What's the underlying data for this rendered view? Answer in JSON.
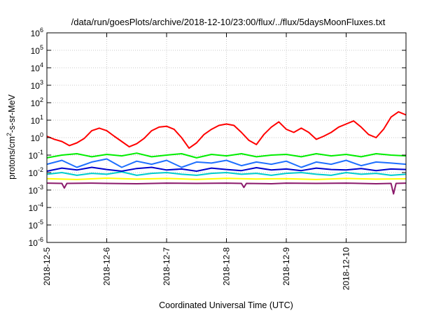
{
  "chart_data": {
    "type": "line",
    "title": "/data/run/goesPlots/archive/2018-12-10/23:00/flux/../flux/5daysMoonFluxes.txt",
    "xlabel": "Coordinated Universal Time (UTC)",
    "ylabel_parts": {
      "base": "protons/cm",
      "exp": "2",
      "rest": "-s-sr-MeV"
    },
    "yscale": "log",
    "ylim": [
      1e-06,
      1000000.0
    ],
    "yticks": [
      {
        "mant": "10",
        "exp": "-6",
        "value": 1e-06
      },
      {
        "mant": "10",
        "exp": "-5",
        "value": 1e-05
      },
      {
        "mant": "10",
        "exp": "-4",
        "value": 0.0001
      },
      {
        "mant": "10",
        "exp": "-3",
        "value": 0.001
      },
      {
        "mant": "10",
        "exp": "-2",
        "value": 0.01
      },
      {
        "mant": "10",
        "exp": "-1",
        "value": 0.1
      },
      {
        "mant": "10",
        "exp": "0",
        "value": 1
      },
      {
        "mant": "10",
        "exp": "1",
        "value": 10
      },
      {
        "mant": "10",
        "exp": "2",
        "value": 100
      },
      {
        "mant": "10",
        "exp": "3",
        "value": 1000
      },
      {
        "mant": "10",
        "exp": "4",
        "value": 10000
      },
      {
        "mant": "10",
        "exp": "5",
        "value": 100000
      },
      {
        "mant": "10",
        "exp": "6",
        "value": 1000000
      }
    ],
    "xlim": [
      "2018-12-05",
      "2018-12-11"
    ],
    "xticks": [
      "2018-12-5",
      "2018-12-6",
      "2018-12-7",
      "2018-12-8",
      "2018-12-9",
      "2018-12-10"
    ],
    "grid": true,
    "series": [
      {
        "color": "#ff0000",
        "x": [
          "2018-12-05 00:00",
          "2018-12-05 03:00",
          "2018-12-05 06:00",
          "2018-12-05 09:00",
          "2018-12-05 12:00",
          "2018-12-05 15:00",
          "2018-12-05 18:00",
          "2018-12-05 21:00",
          "2018-12-06 00:00",
          "2018-12-06 03:00",
          "2018-12-06 06:00",
          "2018-12-06 09:00",
          "2018-12-06 12:00",
          "2018-12-06 15:00",
          "2018-12-06 18:00",
          "2018-12-06 21:00",
          "2018-12-07 00:00",
          "2018-12-07 03:00",
          "2018-12-07 06:00",
          "2018-12-07 09:00",
          "2018-12-07 12:00",
          "2018-12-07 15:00",
          "2018-12-07 18:00",
          "2018-12-07 21:00",
          "2018-12-08 00:00",
          "2018-12-08 03:00",
          "2018-12-08 06:00",
          "2018-12-08 09:00",
          "2018-12-08 12:00",
          "2018-12-08 15:00",
          "2018-12-08 18:00",
          "2018-12-08 21:00",
          "2018-12-09 00:00",
          "2018-12-09 03:00",
          "2018-12-09 06:00",
          "2018-12-09 09:00",
          "2018-12-09 12:00",
          "2018-12-09 15:00",
          "2018-12-09 18:00",
          "2018-12-09 21:00",
          "2018-12-10 00:00",
          "2018-12-10 03:00",
          "2018-12-10 06:00",
          "2018-12-10 09:00",
          "2018-12-10 12:00",
          "2018-12-10 15:00",
          "2018-12-10 18:00",
          "2018-12-10 21:00",
          "2018-12-11 00:00"
        ],
        "values": [
          1.2,
          0.8,
          0.6,
          0.35,
          0.5,
          0.9,
          2.5,
          3.5,
          2.5,
          1.2,
          0.6,
          0.3,
          0.45,
          0.9,
          2.5,
          4.0,
          4.5,
          3.0,
          1.0,
          0.25,
          0.5,
          1.5,
          3.0,
          5.0,
          6.0,
          5.0,
          2.0,
          0.7,
          0.4,
          1.5,
          4.0,
          8.0,
          3.0,
          2.0,
          3.5,
          2.0,
          0.8,
          1.2,
          2.0,
          4.0,
          6.0,
          9.0,
          4.0,
          1.5,
          1.0,
          3.0,
          15.0,
          30.0,
          20.0
        ]
      },
      {
        "color": "#00ee00",
        "x": [
          "2018-12-05 00:00",
          "2018-12-05 06:00",
          "2018-12-05 12:00",
          "2018-12-05 18:00",
          "2018-12-06 00:00",
          "2018-12-06 06:00",
          "2018-12-06 12:00",
          "2018-12-06 18:00",
          "2018-12-07 00:00",
          "2018-12-07 06:00",
          "2018-12-07 12:00",
          "2018-12-07 18:00",
          "2018-12-08 00:00",
          "2018-12-08 06:00",
          "2018-12-08 12:00",
          "2018-12-08 18:00",
          "2018-12-09 00:00",
          "2018-12-09 06:00",
          "2018-12-09 12:00",
          "2018-12-09 18:00",
          "2018-12-10 00:00",
          "2018-12-10 06:00",
          "2018-12-10 12:00",
          "2018-12-10 18:00",
          "2018-12-11 00:00"
        ],
        "values": [
          0.07,
          0.1,
          0.12,
          0.08,
          0.11,
          0.09,
          0.13,
          0.08,
          0.1,
          0.12,
          0.07,
          0.11,
          0.09,
          0.12,
          0.08,
          0.1,
          0.11,
          0.08,
          0.12,
          0.09,
          0.11,
          0.08,
          0.12,
          0.1,
          0.09
        ]
      },
      {
        "color": "#00cccc",
        "x": [
          "2018-12-05 00:00",
          "2018-12-05 06:00",
          "2018-12-05 12:00",
          "2018-12-05 18:00",
          "2018-12-06 00:00",
          "2018-12-06 06:00",
          "2018-12-06 12:00",
          "2018-12-06 18:00",
          "2018-12-07 00:00",
          "2018-12-07 06:00",
          "2018-12-07 12:00",
          "2018-12-07 18:00",
          "2018-12-08 00:00",
          "2018-12-08 06:00",
          "2018-12-08 12:00",
          "2018-12-08 18:00",
          "2018-12-09 00:00",
          "2018-12-09 06:00",
          "2018-12-09 12:00",
          "2018-12-09 18:00",
          "2018-12-10 00:00",
          "2018-12-10 06:00",
          "2018-12-10 12:00",
          "2018-12-10 18:00",
          "2018-12-11 00:00"
        ],
        "values": [
          0.008,
          0.01,
          0.007,
          0.009,
          0.008,
          0.011,
          0.007,
          0.009,
          0.01,
          0.008,
          0.007,
          0.009,
          0.01,
          0.008,
          0.009,
          0.007,
          0.009,
          0.01,
          0.008,
          0.007,
          0.01,
          0.008,
          0.009,
          0.007,
          0.008
        ]
      },
      {
        "color": "#1e6fff",
        "x": [
          "2018-12-05 00:00",
          "2018-12-05 06:00",
          "2018-12-05 12:00",
          "2018-12-05 18:00",
          "2018-12-06 00:00",
          "2018-12-06 06:00",
          "2018-12-06 12:00",
          "2018-12-06 18:00",
          "2018-12-07 00:00",
          "2018-12-07 06:00",
          "2018-12-07 12:00",
          "2018-12-07 18:00",
          "2018-12-08 00:00",
          "2018-12-08 06:00",
          "2018-12-08 12:00",
          "2018-12-08 18:00",
          "2018-12-09 00:00",
          "2018-12-09 06:00",
          "2018-12-09 12:00",
          "2018-12-09 18:00",
          "2018-12-10 00:00",
          "2018-12-10 06:00",
          "2018-12-10 12:00",
          "2018-12-10 18:00",
          "2018-12-11 00:00"
        ],
        "values": [
          0.03,
          0.05,
          0.02,
          0.04,
          0.06,
          0.02,
          0.045,
          0.03,
          0.05,
          0.02,
          0.04,
          0.035,
          0.05,
          0.025,
          0.04,
          0.03,
          0.045,
          0.02,
          0.04,
          0.03,
          0.05,
          0.025,
          0.04,
          0.035,
          0.03
        ]
      },
      {
        "color": "#0000cc",
        "x": [
          "2018-12-05 00:00",
          "2018-12-05 06:00",
          "2018-12-05 12:00",
          "2018-12-05 18:00",
          "2018-12-06 00:00",
          "2018-12-06 06:00",
          "2018-12-06 12:00",
          "2018-12-06 18:00",
          "2018-12-07 00:00",
          "2018-12-07 06:00",
          "2018-12-07 12:00",
          "2018-12-07 18:00",
          "2018-12-08 00:00",
          "2018-12-08 06:00",
          "2018-12-08 12:00",
          "2018-12-08 18:00",
          "2018-12-09 00:00",
          "2018-12-09 06:00",
          "2018-12-09 12:00",
          "2018-12-09 18:00",
          "2018-12-10 00:00",
          "2018-12-10 06:00",
          "2018-12-10 12:00",
          "2018-12-10 18:00",
          "2018-12-11 00:00"
        ],
        "values": [
          0.012,
          0.018,
          0.014,
          0.02,
          0.015,
          0.012,
          0.017,
          0.02,
          0.014,
          0.016,
          0.012,
          0.018,
          0.015,
          0.013,
          0.019,
          0.014,
          0.016,
          0.013,
          0.018,
          0.015,
          0.014,
          0.017,
          0.013,
          0.016,
          0.015
        ]
      },
      {
        "color": "#ffff00",
        "x": [
          "2018-12-05 00:00",
          "2018-12-05 12:00",
          "2018-12-06 00:00",
          "2018-12-06 12:00",
          "2018-12-07 00:00",
          "2018-12-07 12:00",
          "2018-12-08 00:00",
          "2018-12-08 12:00",
          "2018-12-09 00:00",
          "2018-12-09 12:00",
          "2018-12-10 00:00",
          "2018-12-10 12:00",
          "2018-12-11 00:00"
        ],
        "values": [
          0.0045,
          0.004,
          0.0048,
          0.0042,
          0.0046,
          0.0041,
          0.0047,
          0.0043,
          0.0045,
          0.004,
          0.0046,
          0.0042,
          0.0044
        ]
      },
      {
        "color": "#8b1a6b",
        "x": [
          "2018-12-05 00:00",
          "2018-12-05 06:00",
          "2018-12-05 07:00",
          "2018-12-05 08:00",
          "2018-12-05 18:00",
          "2018-12-06 00:00",
          "2018-12-06 12:00",
          "2018-12-07 00:00",
          "2018-12-07 12:00",
          "2018-12-08 00:00",
          "2018-12-08 06:00",
          "2018-12-08 07:00",
          "2018-12-08 08:00",
          "2018-12-08 18:00",
          "2018-12-09 00:00",
          "2018-12-09 12:00",
          "2018-12-10 00:00",
          "2018-12-10 12:00",
          "2018-12-10 18:00",
          "2018-12-10 19:00",
          "2018-12-10 20:00",
          "2018-12-11 00:00"
        ],
        "values": [
          0.0025,
          0.0024,
          0.0013,
          0.0024,
          0.0025,
          0.0024,
          0.0023,
          0.0025,
          0.0024,
          0.0025,
          0.0024,
          0.0014,
          0.0024,
          0.0023,
          0.0025,
          0.0024,
          0.0025,
          0.0023,
          0.0024,
          0.0006,
          0.0024,
          0.0025
        ]
      }
    ]
  }
}
